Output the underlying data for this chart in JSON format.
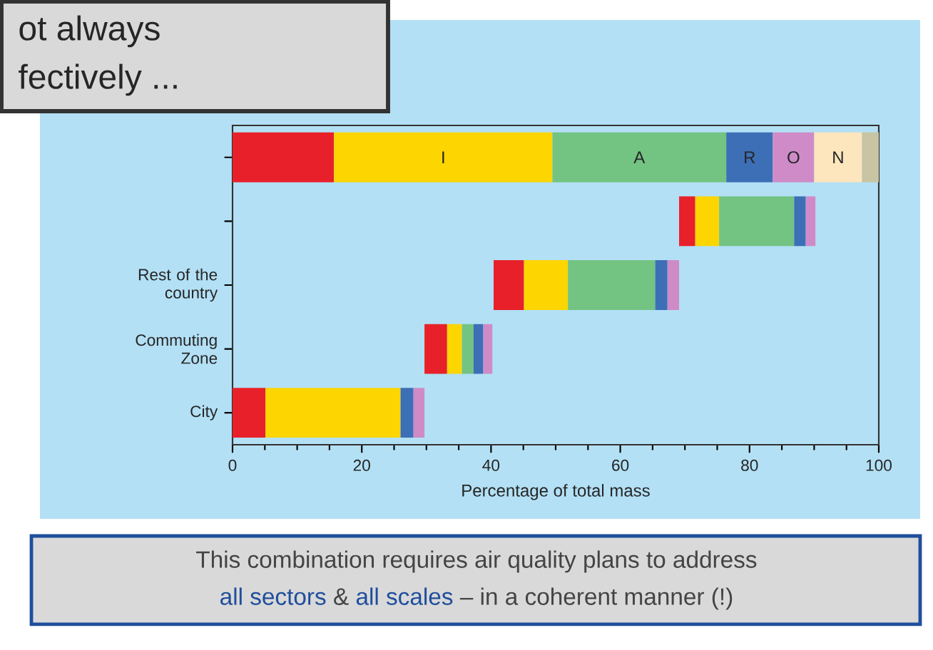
{
  "chart_data": {
    "type": "bar",
    "orientation": "horizontal",
    "categories": [
      null,
      null,
      "Rest of the country",
      "Commuting Zone",
      "City"
    ],
    "series": [
      {
        "color": "#e8202a",
        "values": [
          15.7,
          2.5,
          4.7,
          3.5,
          5.1
        ],
        "base": [
          0,
          69.1,
          40.4,
          29.7,
          0
        ]
      },
      {
        "color": "#fdd500",
        "values": [
          33.8,
          3.7,
          6.8,
          2.3,
          20.9
        ],
        "base": [
          15.7,
          71.6,
          45.1,
          33.2,
          5.1
        ]
      },
      {
        "color": "#73c383",
        "values": [
          26.9,
          11.6,
          13.5,
          1.8,
          null
        ],
        "base": [
          49.5,
          75.3,
          51.9,
          35.5,
          null
        ]
      },
      {
        "color": "#3d6fb6",
        "values": [
          7.2,
          1.8,
          1.9,
          1.5,
          2.0
        ],
        "base": [
          76.4,
          86.9,
          65.4,
          37.3,
          26.0
        ]
      },
      {
        "color": "#cf8bc8",
        "values": [
          6.4,
          1.5,
          1.8,
          1.4,
          1.7
        ],
        "base": [
          83.6,
          88.7,
          67.3,
          38.8,
          28.0
        ]
      },
      {
        "color": "#fde5bd",
        "values": [
          7.4,
          null,
          null,
          null,
          null
        ],
        "base": [
          90.0,
          null,
          null,
          null,
          null
        ]
      },
      {
        "color": "#c9c4a3",
        "values": [
          2.6,
          null,
          null,
          null,
          null
        ],
        "base": [
          97.4,
          null,
          null,
          null,
          null
        ]
      }
    ],
    "xlim": [
      0,
      100
    ],
    "xticks": [
      0,
      20,
      40,
      60,
      80,
      100
    ],
    "xlabel": "Percentage of total mass",
    "annotations": [
      "ot always",
      "fectively ...",
      "This combination requires air quality plans to address",
      "all sectors",
      "&",
      "all scales",
      "– in a coherent manner (!)",
      "I",
      "A",
      "R",
      "O",
      "N"
    ]
  }
}
